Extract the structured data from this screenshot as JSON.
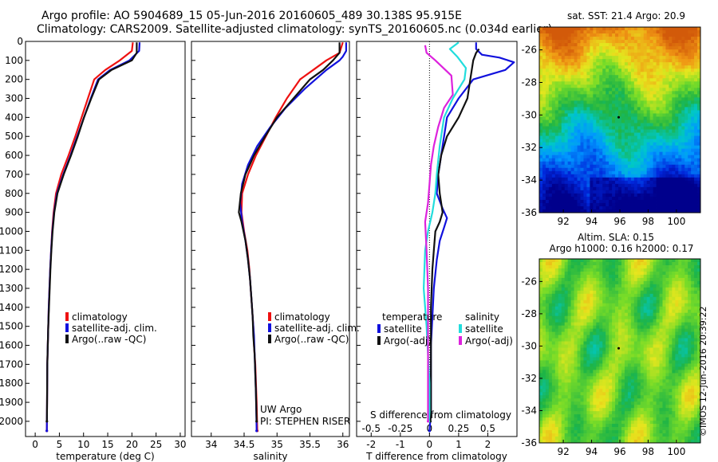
{
  "header": {
    "title_line1": "Argo profile: AO 5904689_15 05-Jun-2016 20160605_489 30.138S 95.915E",
    "title_line2": "Climatology: CARS2009. Satellite-adjusted climatology: synTS_20160605.nc (0.034d earlier)"
  },
  "colors": {
    "climatology": "#ee1111",
    "satellite": "#1111dd",
    "argo": "#111111",
    "salinity_satellite": "#22dddd",
    "salinity_argo": "#dd22dd"
  },
  "chart_data": [
    {
      "type": "line",
      "name": "temperature-profile",
      "xlabel": "temperature (deg C)",
      "ylabel": "",
      "xlim": [
        -2,
        31
      ],
      "ylim": [
        2080,
        0
      ],
      "xticks": [
        0,
        5,
        10,
        15,
        20,
        25,
        30
      ],
      "yticks": [
        0,
        100,
        200,
        300,
        400,
        500,
        600,
        700,
        800,
        900,
        1000,
        1100,
        1200,
        1300,
        1400,
        1500,
        1600,
        1700,
        1800,
        1900,
        2000
      ],
      "legend": [
        "climatology",
        "satellite-adj. clim.",
        "Argo(..raw -QC)"
      ],
      "series": [
        {
          "name": "climatology",
          "color": "#ee1111",
          "x": [
            20.2,
            20.0,
            17.5,
            14.5,
            12.2,
            10.9,
            9.6,
            8.3,
            6.9,
            5.4,
            4.3,
            3.8,
            3.5,
            3.3,
            3.1,
            2.95,
            2.8,
            2.7,
            2.6,
            2.5,
            2.45,
            2.4
          ],
          "y": [
            5,
            50,
            100,
            150,
            200,
            300,
            400,
            500,
            600,
            700,
            800,
            900,
            1000,
            1100,
            1200,
            1300,
            1400,
            1500,
            1600,
            1700,
            1900,
            2050
          ]
        },
        {
          "name": "satellite-adj. clim.",
          "color": "#1111dd",
          "x": [
            21.6,
            21.5,
            19.5,
            15.5,
            13.0,
            11.5,
            10.1,
            8.7,
            7.3,
            5.8,
            4.5,
            3.9,
            3.55,
            3.3,
            3.1,
            2.95,
            2.8,
            2.7,
            2.6,
            2.5,
            2.45,
            2.4
          ],
          "y": [
            5,
            50,
            100,
            150,
            200,
            300,
            400,
            500,
            600,
            700,
            800,
            900,
            1000,
            1100,
            1200,
            1300,
            1400,
            1500,
            1600,
            1700,
            1900,
            2050
          ]
        },
        {
          "name": "Argo(..raw -QC)",
          "color": "#111111",
          "x": [
            21.0,
            21.0,
            20.0,
            15.8,
            13.2,
            11.6,
            10.1,
            8.8,
            7.4,
            5.9,
            4.6,
            3.95,
            3.6,
            3.35,
            3.15,
            3.0,
            2.85,
            2.7,
            2.6,
            2.5,
            2.45,
            2.42
          ],
          "y": [
            5,
            60,
            100,
            150,
            200,
            300,
            400,
            500,
            600,
            700,
            800,
            900,
            1000,
            1100,
            1200,
            1300,
            1400,
            1500,
            1600,
            1700,
            1900,
            2000
          ]
        }
      ]
    },
    {
      "type": "line",
      "name": "salinity-profile",
      "xlabel": "salinity",
      "xlim": [
        33.7,
        36.1
      ],
      "ylim": [
        2080,
        0
      ],
      "xticks": [
        34,
        34.5,
        35,
        35.5,
        36
      ],
      "legend": [
        "climatology",
        "satellite-adj. clim.",
        "Argo(..raw -QC)"
      ],
      "annotation": [
        "UW Argo",
        "PI: STEPHEN RISER"
      ],
      "series": [
        {
          "name": "climatology",
          "color": "#ee1111",
          "x": [
            36.0,
            35.95,
            35.75,
            35.55,
            35.35,
            35.15,
            34.98,
            34.83,
            34.68,
            34.56,
            34.47,
            34.46,
            34.5,
            34.55,
            34.58,
            34.6,
            34.62,
            34.64,
            34.65,
            34.67,
            34.69,
            34.7
          ],
          "y": [
            5,
            60,
            100,
            150,
            200,
            300,
            400,
            500,
            600,
            700,
            800,
            900,
            1000,
            1100,
            1200,
            1300,
            1400,
            1500,
            1600,
            1700,
            1900,
            2050
          ]
        },
        {
          "name": "satellite-adj. clim.",
          "color": "#1111dd",
          "x": [
            36.05,
            36.05,
            36.0,
            35.95,
            35.75,
            35.42,
            35.13,
            34.9,
            34.7,
            34.56,
            34.47,
            34.44,
            34.47,
            34.52,
            34.56,
            34.59,
            34.61,
            34.63,
            34.65,
            34.66,
            34.68,
            34.69
          ],
          "y": [
            5,
            50,
            80,
            100,
            150,
            250,
            350,
            450,
            550,
            650,
            750,
            850,
            950,
            1050,
            1150,
            1250,
            1350,
            1450,
            1550,
            1650,
            1850,
            2050
          ]
        },
        {
          "name": "Argo(..raw -QC)",
          "color": "#111111",
          "x": [
            35.95,
            35.95,
            35.85,
            35.7,
            35.5,
            35.25,
            35.0,
            34.82,
            34.65,
            34.52,
            34.45,
            34.42,
            34.46,
            34.52,
            34.56,
            34.59,
            34.61,
            34.63,
            34.64,
            34.66,
            34.68,
            34.69
          ],
          "y": [
            5,
            60,
            100,
            150,
            200,
            300,
            400,
            500,
            600,
            700,
            800,
            900,
            950,
            1050,
            1150,
            1250,
            1350,
            1450,
            1550,
            1650,
            1850,
            2000
          ]
        }
      ]
    },
    {
      "type": "line",
      "name": "difference-profile",
      "xlabel": "T difference from climatology",
      "xlabel_top": "S difference from climatology",
      "xlim": [
        -2.5,
        3.0
      ],
      "ylim": [
        2080,
        0
      ],
      "xticks": [
        -2,
        -1,
        0,
        1,
        2
      ],
      "xticks_top": [
        -0.5,
        -0.25,
        0,
        0.25,
        0.5
      ],
      "legend_left_title": "temperature",
      "legend_right_title": "salinity",
      "legend": [
        "satellite",
        "Argo(-adj)",
        "satellite",
        "Argo(-adj)"
      ],
      "series": [
        {
          "name": "satellite",
          "color": "#1111dd",
          "x": [
            1.6,
            1.6,
            1.8,
            2.4,
            2.9,
            2.6,
            1.5,
            1.0,
            0.6,
            0.45,
            0.35,
            0.3,
            0.25,
            0.45,
            0.6,
            0.5,
            0.35,
            0.25,
            0.15,
            0.1,
            0.05,
            0.05,
            0.05,
            0.0
          ],
          "y": [
            5,
            40,
            70,
            85,
            110,
            150,
            200,
            300,
            400,
            550,
            650,
            700,
            800,
            880,
            930,
            980,
            1050,
            1150,
            1300,
            1450,
            1600,
            1800,
            1950,
            2050
          ]
        },
        {
          "name": "Argo(-adj)",
          "color": "#111111",
          "x": [
            1.7,
            1.6,
            1.5,
            1.4,
            1.3,
            1.0,
            0.6,
            0.4,
            0.3,
            0.35,
            0.45,
            0.35,
            0.2,
            0.15,
            0.1,
            0.05,
            0.05,
            0.05,
            0.05,
            0.03
          ],
          "y": [
            40,
            60,
            100,
            200,
            300,
            400,
            500,
            600,
            700,
            800,
            900,
            950,
            1000,
            1100,
            1200,
            1400,
            1600,
            1800,
            1950,
            2000
          ]
        },
        {
          "name": "satellite",
          "color": "#22dddd",
          "x": [
            1.0,
            0.7,
            0.95,
            1.25,
            1.2,
            0.8,
            0.5,
            0.35,
            0.25,
            0.2,
            0.1,
            -0.05,
            -0.15,
            -0.2,
            -0.1,
            -0.05,
            0.0,
            0.0,
            0.0,
            -0.02
          ],
          "y": [
            5,
            40,
            80,
            140,
            200,
            300,
            400,
            550,
            700,
            800,
            900,
            1000,
            1100,
            1300,
            1500,
            1650,
            1800,
            1900,
            1950,
            2000
          ]
        },
        {
          "name": "Argo(-adj)",
          "color": "#dd22dd",
          "x": [
            -0.15,
            -0.1,
            0.2,
            0.75,
            0.8,
            0.5,
            0.3,
            0.15,
            0.05,
            0.0,
            -0.05,
            -0.15,
            -0.1,
            -0.05,
            -0.05,
            -0.05,
            -0.05,
            -0.05
          ],
          "y": [
            20,
            60,
            100,
            180,
            280,
            350,
            450,
            550,
            650,
            750,
            850,
            950,
            1100,
            1300,
            1500,
            1700,
            1900,
            2000
          ]
        }
      ]
    },
    {
      "type": "heatmap",
      "name": "sst-map",
      "title": "sat. SST: 21.4 Argo: 20.9",
      "xlim": [
        90.3,
        101.7
      ],
      "ylim": [
        -36,
        -24.6
      ],
      "xticks": [
        92,
        94,
        96,
        98,
        100
      ],
      "yticks": [
        -26,
        -28,
        -30,
        -32,
        -34,
        -36
      ]
    },
    {
      "type": "heatmap",
      "name": "sla-map",
      "title_line1": "Altim. SLA: 0.15",
      "title_line2": "Argo h1000: 0.16 h2000: 0.17",
      "xlim": [
        90.3,
        101.7
      ],
      "ylim": [
        -36,
        -24.6
      ],
      "xticks": [
        92,
        94,
        96,
        98,
        100
      ],
      "yticks": [
        -26,
        -28,
        -30,
        -32,
        -34,
        -36
      ],
      "footer": "©IMOS 12-Jun-2016 20:39:22"
    }
  ]
}
